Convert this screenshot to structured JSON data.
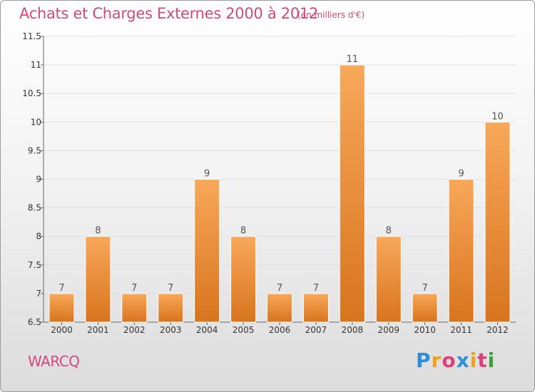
{
  "header": {
    "title": "Achats et Charges Externes 2000 à 2012",
    "unit": "(en milliers d'€)"
  },
  "footer": {
    "commune": "WARCQ",
    "logo_text": "Proxiti"
  },
  "colors": {
    "title": "#d04a7c",
    "bar_light": "#f8a85a",
    "bar_dark": "#d8741e",
    "logo_letters": [
      "#2e8fd6",
      "#f0a020",
      "#e0407a",
      "#2e8fd6",
      "#f0a020",
      "#e0407a",
      "#3aa03a"
    ]
  },
  "chart_data": {
    "type": "bar",
    "categories": [
      "2000",
      "2001",
      "2002",
      "2003",
      "2004",
      "2005",
      "2006",
      "2007",
      "2008",
      "2009",
      "2010",
      "2011",
      "2012"
    ],
    "values": [
      7,
      8,
      7,
      7,
      9,
      8,
      7,
      7,
      11,
      8,
      7,
      9,
      10
    ],
    "data_labels": [
      "7",
      "8",
      "7",
      "7",
      "9",
      "8",
      "7",
      "7",
      "11",
      "8",
      "7",
      "9",
      "10"
    ],
    "yticks": [
      "6.5",
      "7",
      "7.5",
      "8",
      "8.5",
      "9",
      "9.5",
      "10",
      "10.5",
      "11",
      "11.5"
    ],
    "ylim": [
      6.5,
      11.5
    ],
    "grid": "horizontal"
  }
}
